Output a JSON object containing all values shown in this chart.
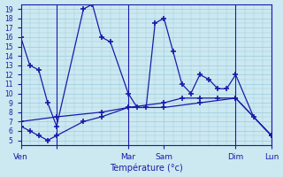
{
  "title": "Température (°c)",
  "ylabel_values": [
    5,
    6,
    7,
    8,
    9,
    10,
    11,
    12,
    13,
    14,
    15,
    16,
    17,
    18,
    19
  ],
  "ylim": [
    4.5,
    19.5
  ],
  "background_color": "#cce8f0",
  "grid_color": "#99ccdd",
  "line_color": "#1a1aaa",
  "x_ticks_pos": [
    0,
    48,
    144,
    192,
    288,
    336
  ],
  "x_tick_labels": [
    "Ven",
    "",
    "Mar",
    "Sam",
    "Dim",
    "Lun"
  ],
  "vlines": [
    48,
    144,
    288,
    336
  ],
  "x_range": [
    0,
    336
  ],
  "series": [
    {
      "x": [
        0,
        12,
        24,
        36,
        48,
        84,
        96,
        108,
        120,
        144,
        156,
        168,
        180,
        192,
        204,
        216,
        228,
        240,
        252,
        264,
        276,
        288,
        312,
        336
      ],
      "y": [
        16,
        13,
        12.5,
        9,
        6.5,
        19,
        19.5,
        16,
        15.5,
        10,
        8.5,
        8.5,
        17.5,
        18,
        14.5,
        11,
        10,
        12,
        11.5,
        10.5,
        10.5,
        12,
        7.5,
        5.5
      ]
    },
    {
      "x": [
        0,
        12,
        24,
        36,
        48,
        84,
        108,
        144,
        192,
        216,
        240,
        264,
        288,
        336
      ],
      "y": [
        6.5,
        6,
        5.5,
        5,
        5.5,
        7,
        7.5,
        8.5,
        9,
        9.5,
        9.5,
        9.5,
        9.5,
        5.5
      ]
    },
    {
      "x": [
        0,
        48,
        108,
        144,
        192,
        240,
        288,
        336
      ],
      "y": [
        7,
        7.5,
        8,
        8.5,
        8.5,
        9,
        9.5,
        5.5
      ]
    }
  ]
}
